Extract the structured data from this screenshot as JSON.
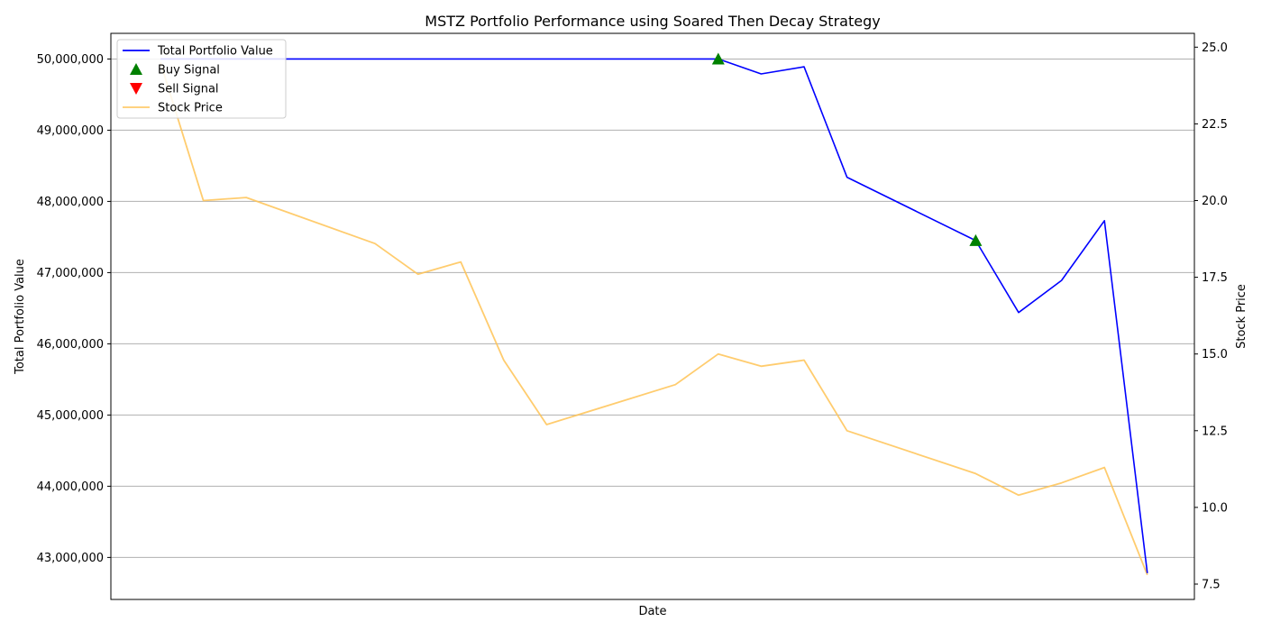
{
  "chart_data": {
    "type": "line",
    "title": "MSTZ Portfolio Performance using Soared Then Decay Strategy",
    "xlabel": "Date",
    "ylabel_left": "Total Portfolio Value",
    "ylabel_right": "Stock Price",
    "x": [
      0,
      1,
      2,
      3,
      4,
      5,
      6,
      7,
      8,
      9,
      10,
      11,
      12,
      13,
      14,
      15,
      16,
      17,
      18,
      19,
      20,
      21,
      22,
      23,
      24
    ],
    "ylim_left": [
      42410000,
      50360000
    ],
    "ylim_right": [
      7.0,
      25.45
    ],
    "yticks_left": [
      {
        "value": 43000000,
        "label": "43,000,000"
      },
      {
        "value": 44000000,
        "label": "44,000,000"
      },
      {
        "value": 45000000,
        "label": "45,000,000"
      },
      {
        "value": 46000000,
        "label": "46,000,000"
      },
      {
        "value": 47000000,
        "label": "47,000,000"
      },
      {
        "value": 48000000,
        "label": "48,000,000"
      },
      {
        "value": 49000000,
        "label": "49,000,000"
      },
      {
        "value": 50000000,
        "label": "50,000,000"
      }
    ],
    "yticks_right": [
      {
        "value": 7.5,
        "label": "7.5"
      },
      {
        "value": 10.0,
        "label": "10.0"
      },
      {
        "value": 12.5,
        "label": "12.5"
      },
      {
        "value": 15.0,
        "label": "15.0"
      },
      {
        "value": 17.5,
        "label": "17.5"
      },
      {
        "value": 20.0,
        "label": "20.0"
      },
      {
        "value": 22.5,
        "label": "22.5"
      },
      {
        "value": 25.0,
        "label": "25.0"
      }
    ],
    "grid": "horizontal",
    "legend_position": "top-left",
    "series": [
      {
        "name": "Total Portfolio Value",
        "axis": "left",
        "color": "#0000ff",
        "values": [
          50000000,
          50000000,
          50000000,
          50000000,
          50000000,
          50000000,
          50000000,
          50000000,
          50000000,
          50000000,
          50000000,
          50000000,
          50000000,
          50000000,
          49790000,
          49890000,
          48340000,
          null,
          null,
          47450000,
          46440000,
          46890000,
          47730000,
          42780000,
          null
        ]
      },
      {
        "name": "Stock Price",
        "axis": "right",
        "color": "#ffc355",
        "values": [
          24.5,
          20.0,
          20.1,
          null,
          null,
          18.6,
          17.6,
          18.0,
          14.8,
          12.7,
          null,
          null,
          14.0,
          15.0,
          14.6,
          14.8,
          12.5,
          null,
          null,
          11.1,
          10.4,
          10.8,
          11.3,
          7.8,
          null
        ]
      }
    ],
    "buy_signals": [
      {
        "x": 13,
        "value": 50000000
      },
      {
        "x": 19,
        "value": 47450000
      }
    ],
    "sell_signals": [],
    "legend": [
      {
        "label": "Total Portfolio Value",
        "kind": "line",
        "color": "#0000ff"
      },
      {
        "label": "Buy Signal",
        "kind": "triangle-up",
        "color": "#008000"
      },
      {
        "label": "Sell Signal",
        "kind": "triangle-down",
        "color": "#ff0000"
      },
      {
        "label": "Stock Price",
        "kind": "line",
        "color": "#ffc355"
      }
    ]
  }
}
